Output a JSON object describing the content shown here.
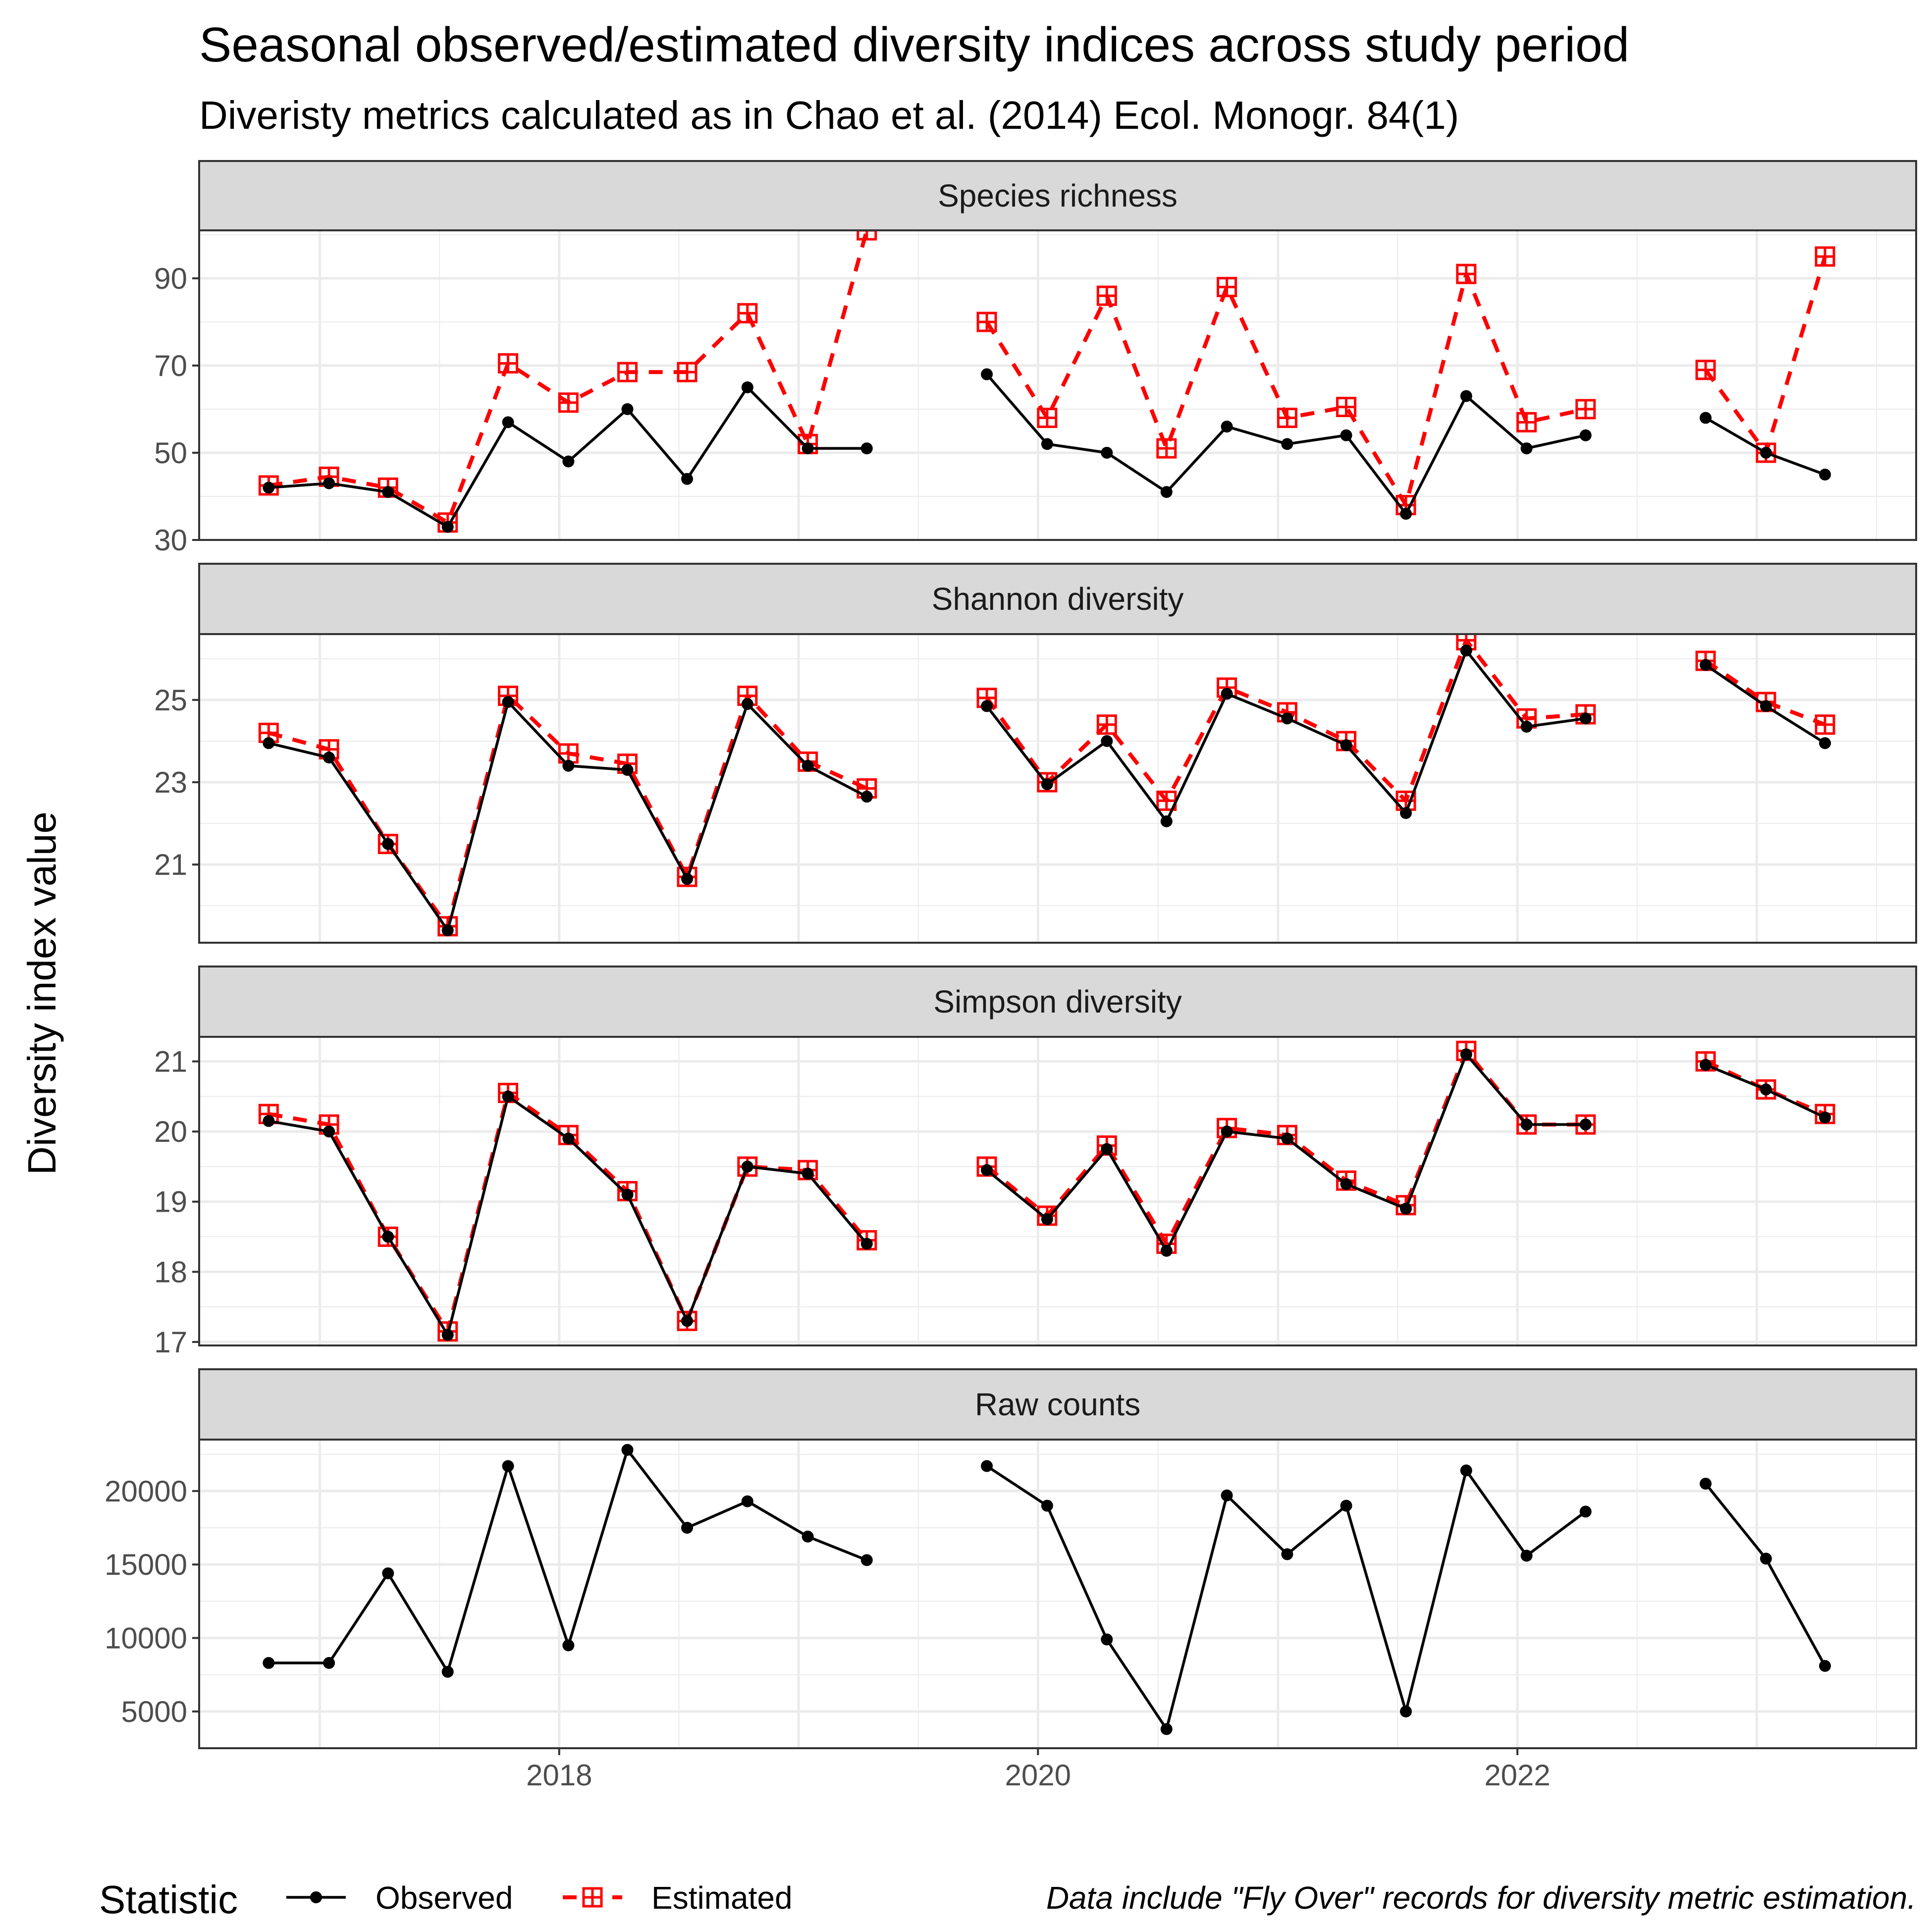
{
  "chart_data": {
    "type": "line",
    "title": "Seasonal observed/estimated diversity indices across study period",
    "subtitle": "Diveristy metrics calculated as in Chao et al. (2014) Ecol. Monogr. 84(1)",
    "ylabel": "Diversity index value",
    "caption": "Data include \"Fly Over\" records for diversity metric estimation.",
    "legend": {
      "title": "Statistic",
      "position": "bottom",
      "entries": [
        {
          "name": "Observed",
          "color": "#000000"
        },
        {
          "name": "Estimated",
          "color": "#ff0000"
        }
      ]
    },
    "x_axis": {
      "type": "date",
      "range": [
        "2016-07-01",
        "2023-09-01"
      ],
      "ticks": [
        {
          "label": "2018",
          "value": "2018-01-01"
        },
        {
          "label": "2020",
          "value": "2020-01-01"
        },
        {
          "label": "2022",
          "value": "2022-01-01"
        }
      ]
    },
    "x": [
      "2016-10-15",
      "2017-01-15",
      "2017-04-15",
      "2017-07-15",
      "2017-10-15",
      "2018-01-15",
      "2018-04-15",
      "2018-07-15",
      "2018-10-15",
      "2019-01-15",
      "2019-04-15",
      "2019-07-15",
      "2019-10-15",
      "2020-01-15",
      "2020-04-15",
      "2020-07-15",
      "2020-10-15",
      "2021-01-15",
      "2021-04-15",
      "2021-07-15",
      "2021-10-15",
      "2022-01-15",
      "2022-04-15",
      "2022-07-15",
      "2022-10-15",
      "2023-01-15",
      "2023-04-15"
    ],
    "grid": true,
    "panels": [
      {
        "title": "Species richness",
        "ylim": [
          30,
          101
        ],
        "y_ticks": [
          30,
          50,
          70,
          90
        ],
        "series": [
          {
            "name": "Observed",
            "values": [
              42,
              43,
              41,
              33,
              57,
              48,
              60,
              44,
              65,
              51,
              51,
              null,
              68,
              52,
              50,
              41,
              56,
              52,
              54,
              36,
              63,
              51,
              54,
              null,
              58,
              50,
              45
            ]
          },
          {
            "name": "Estimated",
            "values": [
              42.5,
              44.5,
              42,
              34,
              70.5,
              61.5,
              68.5,
              68.5,
              82,
              52,
              101,
              null,
              80,
              58,
              86,
              51,
              88,
              58,
              60.5,
              38,
              91,
              57,
              60,
              null,
              69,
              50,
              95
            ]
          }
        ]
      },
      {
        "title": "Shannon diversity",
        "ylim": [
          19.1,
          26.6
        ],
        "y_ticks": [
          21,
          23,
          25
        ],
        "series": [
          {
            "name": "Observed",
            "values": [
              23.95,
              23.6,
              21.5,
              19.4,
              24.95,
              23.4,
              23.3,
              20.65,
              24.9,
              23.4,
              22.65,
              null,
              24.85,
              22.95,
              24,
              22.05,
              25.15,
              24.55,
              23.9,
              22.25,
              26.2,
              24.35,
              24.55,
              null,
              25.85,
              24.85,
              23.95
            ]
          },
          {
            "name": "Estimated",
            "values": [
              24.2,
              23.8,
              21.5,
              19.5,
              25.1,
              23.7,
              23.45,
              20.7,
              25.1,
              23.5,
              22.85,
              null,
              25.05,
              23,
              24.4,
              22.55,
              25.3,
              24.7,
              24,
              22.55,
              26.45,
              24.55,
              24.65,
              null,
              25.95,
              24.95,
              24.4
            ]
          }
        ]
      },
      {
        "title": "Simpson diversity",
        "ylim": [
          16.95,
          21.35
        ],
        "y_ticks": [
          17,
          18,
          19,
          20,
          21
        ],
        "series": [
          {
            "name": "Observed",
            "values": [
              20.15,
              20,
              18.5,
              17.1,
              20.5,
              19.9,
              19.1,
              17.3,
              19.5,
              19.4,
              18.4,
              null,
              19.45,
              18.75,
              19.75,
              18.3,
              20,
              19.9,
              19.25,
              18.9,
              21.1,
              20.1,
              20.1,
              null,
              20.95,
              20.6,
              20.2
            ]
          },
          {
            "name": "Estimated",
            "values": [
              20.25,
              20.1,
              18.5,
              17.15,
              20.55,
              19.95,
              19.15,
              17.3,
              19.5,
              19.45,
              18.45,
              null,
              19.5,
              18.8,
              19.8,
              18.4,
              20.05,
              19.95,
              19.3,
              18.95,
              21.15,
              20.1,
              20.1,
              null,
              21,
              20.6,
              20.25
            ]
          }
        ]
      },
      {
        "title": "Raw counts",
        "ylim": [
          2500,
          23500
        ],
        "y_ticks": [
          5000,
          10000,
          15000,
          20000
        ],
        "series": [
          {
            "name": "Observed",
            "values": [
              8300,
              8300,
              14400,
              7700,
              21700,
              9500,
              22800,
              17500,
              19300,
              16900,
              15300,
              null,
              21700,
              19000,
              9900,
              3800,
              19700,
              15700,
              19000,
              5000,
              21400,
              15600,
              18600,
              null,
              20500,
              15400,
              8100
            ]
          }
        ]
      }
    ]
  }
}
